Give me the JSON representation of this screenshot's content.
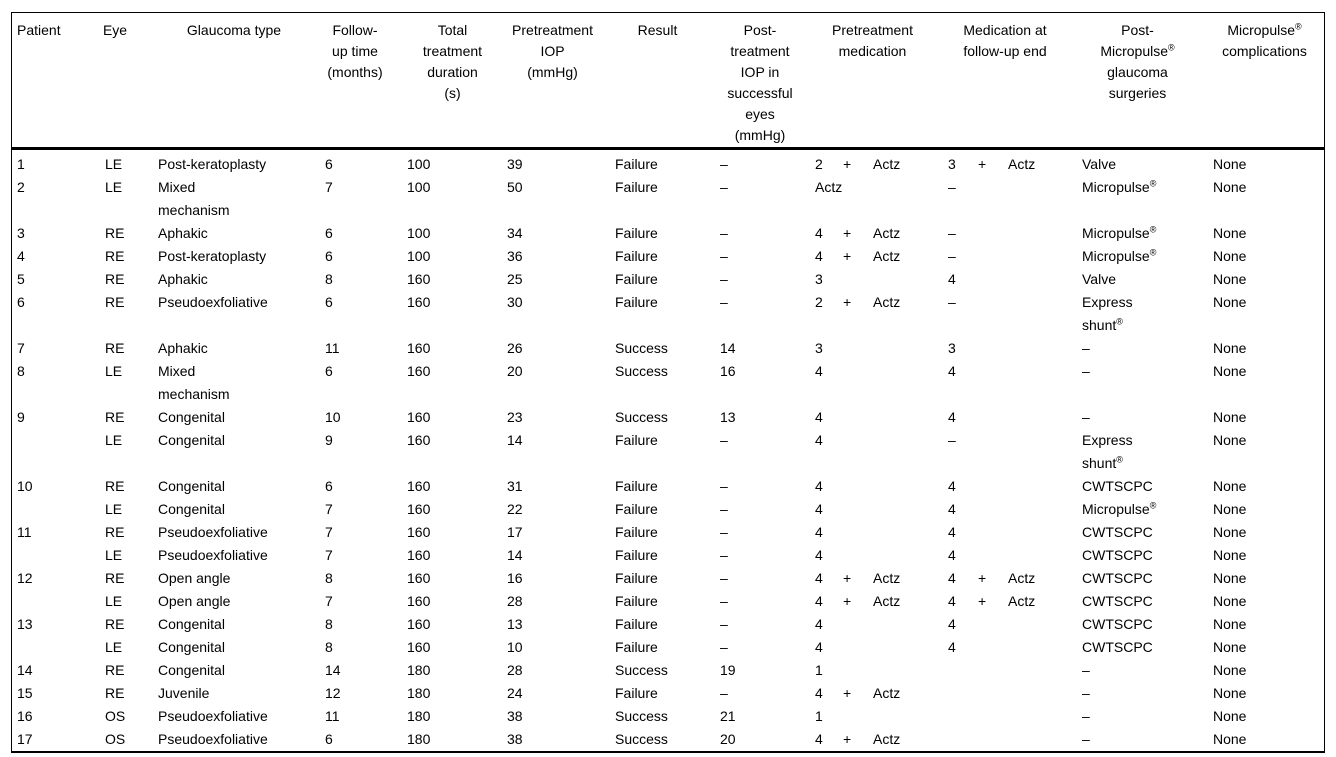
{
  "table": {
    "name": "micropulse-patient-outcomes-table",
    "columns": [
      {
        "key": "patient",
        "label": "Patient"
      },
      {
        "key": "eye",
        "label": "Eye"
      },
      {
        "key": "glaucoma",
        "label": "Glaucoma type"
      },
      {
        "key": "followup",
        "label": "Follow-\nup time\n(months)"
      },
      {
        "key": "duration",
        "label": "Total\ntreatment\nduration\n(s)"
      },
      {
        "key": "pre_iop",
        "label": "Pretreatment\nIOP\n(mmHg)"
      },
      {
        "key": "result",
        "label": "Result"
      },
      {
        "key": "post_iop",
        "label": "Post-\ntreatment\nIOP in\nsuccessful\neyes\n(mmHg)"
      },
      {
        "key": "pre_med",
        "label": "Pretreatment\nmedication"
      },
      {
        "key": "fu_med",
        "label": "Medication at\nfollow-up end"
      },
      {
        "key": "surgery",
        "label": "Post-\nMicropulse®\nglaucoma\nsurgeries"
      },
      {
        "key": "complications",
        "label": "Micropulse®\ncomplications"
      }
    ],
    "rows": [
      {
        "patient": "1",
        "eye": "LE",
        "glaucoma": "Post-keratoplasty",
        "followup": "6",
        "duration": "100",
        "pre_iop": "39",
        "result": "Failure",
        "post_iop": "–",
        "pre_med": [
          "2",
          "+",
          "Actz"
        ],
        "fu_med": [
          "3",
          "+",
          "Actz"
        ],
        "surgery": "Valve",
        "complications": "None"
      },
      {
        "patient": "2",
        "eye": "LE",
        "glaucoma": "Mixed\nmechanism",
        "followup": "7",
        "duration": "100",
        "pre_iop": "50",
        "result": "Failure",
        "post_iop": "–",
        "pre_med": [
          "Actz",
          "",
          ""
        ],
        "fu_med": [
          "–",
          "",
          ""
        ],
        "surgery": "Micropulse®",
        "complications": "None"
      },
      {
        "patient": "3",
        "eye": "RE",
        "glaucoma": "Aphakic",
        "followup": "6",
        "duration": "100",
        "pre_iop": "34",
        "result": "Failure",
        "post_iop": "–",
        "pre_med": [
          "4",
          "+",
          "Actz"
        ],
        "fu_med": [
          "–",
          "",
          ""
        ],
        "surgery": "Micropulse®",
        "complications": "None"
      },
      {
        "patient": "4",
        "eye": "RE",
        "glaucoma": "Post-keratoplasty",
        "followup": "6",
        "duration": "100",
        "pre_iop": "36",
        "result": "Failure",
        "post_iop": "–",
        "pre_med": [
          "4",
          "+",
          "Actz"
        ],
        "fu_med": [
          "–",
          "",
          ""
        ],
        "surgery": "Micropulse®",
        "complications": "None"
      },
      {
        "patient": "5",
        "eye": "RE",
        "glaucoma": "Aphakic",
        "followup": "8",
        "duration": "160",
        "pre_iop": "25",
        "result": "Failure",
        "post_iop": "–",
        "pre_med": [
          "3",
          "",
          ""
        ],
        "fu_med": [
          "4",
          "",
          ""
        ],
        "surgery": "Valve",
        "complications": "None"
      },
      {
        "patient": "6",
        "eye": "RE",
        "glaucoma": "Pseudoexfoliative",
        "followup": "6",
        "duration": "160",
        "pre_iop": "30",
        "result": "Failure",
        "post_iop": "–",
        "pre_med": [
          "2",
          "+",
          "Actz"
        ],
        "fu_med": [
          "–",
          "",
          ""
        ],
        "surgery": "Express\nshunt®",
        "complications": "None"
      },
      {
        "patient": "7",
        "eye": "RE",
        "glaucoma": "Aphakic",
        "followup": "11",
        "duration": "160",
        "pre_iop": "26",
        "result": "Success",
        "post_iop": "14",
        "pre_med": [
          "3",
          "",
          ""
        ],
        "fu_med": [
          "3",
          "",
          ""
        ],
        "surgery": "–",
        "complications": "None"
      },
      {
        "patient": "8",
        "eye": "LE",
        "glaucoma": "Mixed\nmechanism",
        "followup": "6",
        "duration": "160",
        "pre_iop": "20",
        "result": "Success",
        "post_iop": "16",
        "pre_med": [
          "4",
          "",
          ""
        ],
        "fu_med": [
          "4",
          "",
          ""
        ],
        "surgery": "–",
        "complications": "None"
      },
      {
        "patient": "9",
        "eye": "RE",
        "glaucoma": "Congenital",
        "followup": "10",
        "duration": "160",
        "pre_iop": "23",
        "result": "Success",
        "post_iop": "13",
        "pre_med": [
          "4",
          "",
          ""
        ],
        "fu_med": [
          "4",
          "",
          ""
        ],
        "surgery": "–",
        "complications": "None"
      },
      {
        "patient": "",
        "eye": "LE",
        "glaucoma": "Congenital",
        "followup": "9",
        "duration": "160",
        "pre_iop": "14",
        "result": "Failure",
        "post_iop": "–",
        "pre_med": [
          "4",
          "",
          ""
        ],
        "fu_med": [
          "–",
          "",
          ""
        ],
        "surgery": "Express\nshunt®",
        "complications": "None"
      },
      {
        "patient": "10",
        "eye": "RE",
        "glaucoma": "Congenital",
        "followup": "6",
        "duration": "160",
        "pre_iop": "31",
        "result": "Failure",
        "post_iop": "–",
        "pre_med": [
          "4",
          "",
          ""
        ],
        "fu_med": [
          "4",
          "",
          ""
        ],
        "surgery": "CWTSCPC",
        "complications": "None"
      },
      {
        "patient": "",
        "eye": "LE",
        "glaucoma": "Congenital",
        "followup": "7",
        "duration": "160",
        "pre_iop": "22",
        "result": "Failure",
        "post_iop": "–",
        "pre_med": [
          "4",
          "",
          ""
        ],
        "fu_med": [
          "4",
          "",
          ""
        ],
        "surgery": "Micropulse®",
        "complications": "None"
      },
      {
        "patient": "11",
        "eye": "RE",
        "glaucoma": "Pseudoexfoliative",
        "followup": "7",
        "duration": "160",
        "pre_iop": "17",
        "result": "Failure",
        "post_iop": "–",
        "pre_med": [
          "4",
          "",
          ""
        ],
        "fu_med": [
          "4",
          "",
          ""
        ],
        "surgery": "CWTSCPC",
        "complications": "None"
      },
      {
        "patient": "",
        "eye": "LE",
        "glaucoma": "Pseudoexfoliative",
        "followup": "7",
        "duration": "160",
        "pre_iop": "14",
        "result": "Failure",
        "post_iop": "–",
        "pre_med": [
          "4",
          "",
          ""
        ],
        "fu_med": [
          "4",
          "",
          ""
        ],
        "surgery": "CWTSCPC",
        "complications": "None"
      },
      {
        "patient": "12",
        "eye": "RE",
        "glaucoma": "Open angle",
        "followup": "8",
        "duration": "160",
        "pre_iop": "16",
        "result": "Failure",
        "post_iop": "–",
        "pre_med": [
          "4",
          "+",
          "Actz"
        ],
        "fu_med": [
          "4",
          "+",
          "Actz"
        ],
        "surgery": "CWTSCPC",
        "complications": "None"
      },
      {
        "patient": "",
        "eye": "LE",
        "glaucoma": "Open angle",
        "followup": "7",
        "duration": "160",
        "pre_iop": "28",
        "result": "Failure",
        "post_iop": "–",
        "pre_med": [
          "4",
          "+",
          "Actz"
        ],
        "fu_med": [
          "4",
          "+",
          "Actz"
        ],
        "surgery": "CWTSCPC",
        "complications": "None"
      },
      {
        "patient": "13",
        "eye": "RE",
        "glaucoma": "Congenital",
        "followup": "8",
        "duration": "160",
        "pre_iop": "13",
        "result": "Failure",
        "post_iop": "–",
        "pre_med": [
          "4",
          "",
          ""
        ],
        "fu_med": [
          "4",
          "",
          ""
        ],
        "surgery": "CWTSCPC",
        "complications": "None"
      },
      {
        "patient": "",
        "eye": "LE",
        "glaucoma": "Congenital",
        "followup": "8",
        "duration": "160",
        "pre_iop": "10",
        "result": "Failure",
        "post_iop": "–",
        "pre_med": [
          "4",
          "",
          ""
        ],
        "fu_med": [
          "4",
          "",
          ""
        ],
        "surgery": "CWTSCPC",
        "complications": "None"
      },
      {
        "patient": "14",
        "eye": "RE",
        "glaucoma": "Congenital",
        "followup": "14",
        "duration": "180",
        "pre_iop": "28",
        "result": "Success",
        "post_iop": "19",
        "pre_med": [
          "1",
          "",
          ""
        ],
        "fu_med": [
          "",
          "",
          ""
        ],
        "surgery": "–",
        "complications": "None"
      },
      {
        "patient": "15",
        "eye": "RE",
        "glaucoma": "Juvenile",
        "followup": "12",
        "duration": "180",
        "pre_iop": "24",
        "result": "Failure",
        "post_iop": "–",
        "pre_med": [
          "4",
          "+",
          "Actz"
        ],
        "fu_med": [
          "",
          "",
          ""
        ],
        "surgery": "–",
        "complications": "None"
      },
      {
        "patient": "16",
        "eye": "OS",
        "glaucoma": "Pseudoexfoliative",
        "followup": "11",
        "duration": "180",
        "pre_iop": "38",
        "result": "Success",
        "post_iop": "21",
        "pre_med": [
          "1",
          "",
          ""
        ],
        "fu_med": [
          "",
          "",
          ""
        ],
        "surgery": "–",
        "complications": "None"
      },
      {
        "patient": "17",
        "eye": "OS",
        "glaucoma": "Pseudoexfoliative",
        "followup": "6",
        "duration": "180",
        "pre_iop": "38",
        "result": "Success",
        "post_iop": "20",
        "pre_med": [
          "4",
          "+",
          "Actz"
        ],
        "fu_med": [
          "",
          "",
          ""
        ],
        "surgery": "–",
        "complications": "None"
      }
    ]
  }
}
